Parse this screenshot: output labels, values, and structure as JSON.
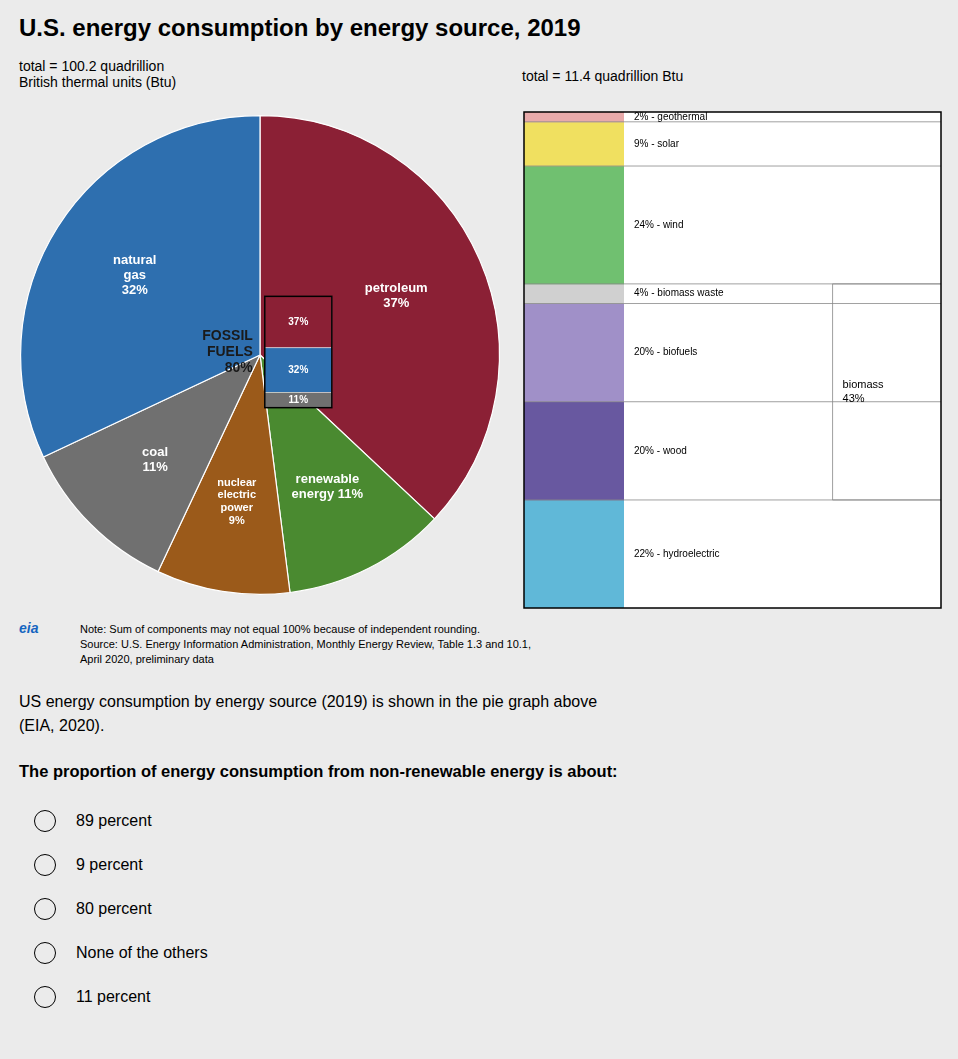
{
  "background": "#EBEBEB",
  "title": "U.S. energy consumption by energy source, 2019",
  "chart_data": [
    {
      "type": "pie",
      "subtitle": "total = 100.2 quadrillion\nBritish thermal units (Btu)",
      "values": [
        37,
        11,
        9,
        11,
        32
      ],
      "value_labels": [
        "petroleum\n37%",
        "renewable\nenergy 11%",
        "nuclear\nelectric\npower\n9%",
        "coal\n11%",
        "natural\ngas\n32%"
      ],
      "colors": [
        "#8B2035",
        "#4A8A30",
        "#9B5A1A",
        "#707070",
        "#2E6FAF"
      ],
      "data_labels": true,
      "annotations": [
        {
          "text": "FOSSIL\nFUELS\n80%",
          "values": [
            37,
            32,
            11
          ],
          "value_labels": [
            "37%",
            "32%",
            "11%"
          ],
          "colors": [
            "#8B2035",
            "#2E6FAF",
            "#707070"
          ]
        }
      ]
    },
    {
      "type": "bar",
      "stacked": true,
      "subtitle": "total = 11.4 quadrillion Btu",
      "categories": [
        null
      ],
      "series": [
        {
          "name": "2% - geothermal",
          "color": "#E8AAAA",
          "values": [
            2
          ]
        },
        {
          "name": "9% - solar",
          "color": "#F0E060",
          "values": [
            9
          ]
        },
        {
          "name": "24% - wind",
          "color": "#70C070",
          "values": [
            24
          ]
        },
        {
          "name": "4% - biomass waste",
          "color": "#D0D0D0",
          "values": [
            4
          ]
        },
        {
          "name": "20% - biofuels",
          "color": "#A090C8",
          "values": [
            20
          ]
        },
        {
          "name": "20% - wood",
          "color": "#6858A0",
          "values": [
            20
          ]
        },
        {
          "name": "22% - hydroelectric",
          "color": "#60B8D8",
          "values": [
            22
          ]
        }
      ],
      "ylim": [
        0,
        101
      ],
      "tick_labels": false,
      "grid": false,
      "annotations": [
        {
          "text": "biomass\n43%",
          "series": [
            "4% - biomass waste",
            "20% - biofuels",
            "20% - wood"
          ]
        }
      ]
    }
  ],
  "notes": [
    "Note: Sum of components may not equal 100% because of independent rounding.",
    "Source: U.S. Energy Information Administration, Monthly Energy Review, Table 1.3 and 10.1,",
    "April 2020, preliminary data"
  ],
  "logo": {
    "text": "eia",
    "color": "#1565C0"
  },
  "question": "US energy consumption by energy source (2019) is shown in the pie graph above\n(EIA, 2020).",
  "question2": "The proportion of energy consumption from non-renewable energy is about:",
  "options": [
    "89 percent",
    "9 percent",
    "80 percent",
    "None of the others",
    "11 percent"
  ]
}
